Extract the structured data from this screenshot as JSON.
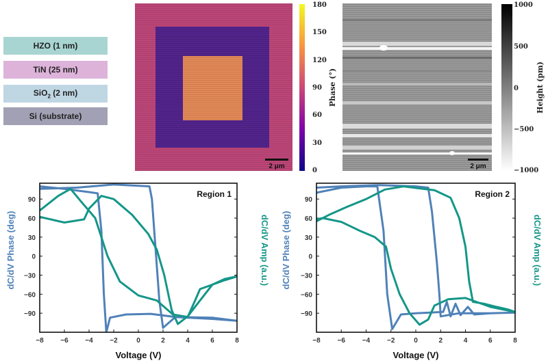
{
  "layer_stack": [
    {
      "label": "HZO (1 nm)",
      "color": "#a8d5d1"
    },
    {
      "label": "TiN (25 nm)",
      "color": "#ddb3da"
    },
    {
      "label": "SiO",
      "sub": "2",
      "suffix": " (2 nm)",
      "color": "#bfd6e3"
    },
    {
      "label": "Si (substrate)",
      "color": "#a2a0b4"
    }
  ],
  "phase_map": {
    "colorbar_label": "Phase (°)",
    "colorbar_ticks": [
      "180",
      "150",
      "120",
      "90",
      "60",
      "30",
      "0"
    ],
    "scale_bar": "2 μm",
    "colors": {
      "outer": "#c2487c",
      "ring": "#542590",
      "center": "#ea8d5a"
    }
  },
  "height_map": {
    "colorbar_label": "Height (pm)",
    "colorbar_ticks": [
      "1000",
      "500",
      "0",
      "−500",
      "−1000"
    ],
    "scale_bar": "2 μm"
  },
  "chart_data": [
    {
      "type": "line",
      "title": "Region 1",
      "xlabel": "Voltage (V)",
      "ylabel_left": "dC/dV Phase (deg)",
      "ylabel_right": "dC/dV Amp (a.u.)",
      "xlim": [
        -8,
        8
      ],
      "ylim": [
        -120,
        115
      ],
      "x_ticks": [
        "−8",
        "−6",
        "−4",
        "−2",
        "0",
        "2",
        "4",
        "6",
        "8"
      ],
      "y_ticks": [
        "90",
        "60",
        "30",
        "0",
        "−30",
        "−60",
        "−90"
      ],
      "colors": {
        "phase": "#4f81b8",
        "amp": "#149688"
      },
      "series": [
        {
          "id": "phase",
          "points": [
            [
              -8,
              110
            ],
            [
              -6,
              106
            ],
            [
              -4,
              101
            ],
            [
              -3.3,
              99
            ],
            [
              -3,
              40
            ],
            [
              -2.8,
              -60
            ],
            [
              -2.6,
              -120
            ],
            [
              -2.3,
              -97
            ],
            [
              -1,
              -92
            ],
            [
              1,
              -91
            ],
            [
              3,
              -96
            ],
            [
              6,
              -99
            ],
            [
              8,
              -102
            ],
            [
              6,
              -97
            ],
            [
              3,
              -96
            ],
            [
              2,
              -113
            ],
            [
              1.7,
              -70
            ],
            [
              1.4,
              10
            ],
            [
              1.1,
              90
            ],
            [
              0.9,
              110
            ],
            [
              -2,
              113
            ],
            [
              -5,
              108
            ],
            [
              -8,
              106
            ]
          ]
        },
        {
          "id": "amp",
          "points": [
            [
              -8,
              62
            ],
            [
              -6,
              53
            ],
            [
              -4.4,
              58
            ],
            [
              -4,
              75
            ],
            [
              -3,
              95
            ],
            [
              -2,
              90
            ],
            [
              -0.5,
              65
            ],
            [
              0.8,
              35
            ],
            [
              1.5,
              10
            ],
            [
              2.1,
              -30
            ],
            [
              2.7,
              -85
            ],
            [
              3.2,
              -107
            ],
            [
              4,
              -95
            ],
            [
              5,
              -70
            ],
            [
              6,
              -45
            ],
            [
              7,
              -38
            ],
            [
              8,
              -32
            ],
            [
              7,
              -36
            ],
            [
              6,
              -45
            ],
            [
              5,
              -52
            ],
            [
              4.6,
              -70
            ],
            [
              4,
              -96
            ],
            [
              2.8,
              -92
            ],
            [
              1.5,
              -70
            ],
            [
              0,
              -62
            ],
            [
              -1.5,
              -40
            ],
            [
              -2.5,
              0
            ],
            [
              -3.5,
              60
            ],
            [
              -4.6,
              85
            ],
            [
              -5.5,
              106
            ],
            [
              -6.5,
              95
            ],
            [
              -8,
              72
            ]
          ]
        }
      ]
    },
    {
      "type": "line",
      "title": "Region 2",
      "xlabel": "Voltage (V)",
      "ylabel_left": "dC/dV Phase (deg)",
      "ylabel_right": "dC/dV Amp (a.u.)",
      "xlim": [
        -8,
        8
      ],
      "ylim": [
        -120,
        115
      ],
      "x_ticks": [
        "−8",
        "−6",
        "−4",
        "−2",
        "0",
        "2",
        "4",
        "6",
        "8"
      ],
      "y_ticks": [
        "90",
        "60",
        "30",
        "0",
        "−30",
        "−60",
        "−90"
      ],
      "colors": {
        "phase": "#4f81b8",
        "amp": "#149688"
      },
      "series": [
        {
          "id": "phase",
          "points": [
            [
              -8,
              100
            ],
            [
              -6,
              108
            ],
            [
              -4,
              110
            ],
            [
              -3.1,
              110
            ],
            [
              -2.6,
              40
            ],
            [
              -2.3,
              -60
            ],
            [
              -1.9,
              -115
            ],
            [
              -1.2,
              -92
            ],
            [
              0,
              -90
            ],
            [
              2.2,
              -88
            ],
            [
              2.5,
              -72
            ],
            [
              2.8,
              -95
            ],
            [
              3.2,
              -75
            ],
            [
              3.6,
              -93
            ],
            [
              4.2,
              -80
            ],
            [
              4.7,
              -92
            ],
            [
              6,
              -90
            ],
            [
              8,
              -89
            ],
            [
              6,
              -90
            ],
            [
              3.5,
              -90
            ],
            [
              2,
              -95
            ],
            [
              1.9,
              -60
            ],
            [
              1.7,
              -10
            ],
            [
              1.3,
              70
            ],
            [
              1,
              108
            ],
            [
              0,
              110
            ],
            [
              -3,
              112
            ],
            [
              -6,
              110
            ],
            [
              -8,
              108
            ]
          ]
        },
        {
          "id": "amp",
          "points": [
            [
              -8,
              55
            ],
            [
              -7,
              65
            ],
            [
              -5.5,
              78
            ],
            [
              -4,
              90
            ],
            [
              -2.5,
              105
            ],
            [
              -1,
              110
            ],
            [
              1.5,
              104
            ],
            [
              2.8,
              92
            ],
            [
              3.5,
              60
            ],
            [
              4,
              15
            ],
            [
              4.3,
              -40
            ],
            [
              4.6,
              -72
            ],
            [
              5.5,
              -75
            ],
            [
              6.5,
              -80
            ],
            [
              7.4,
              -84
            ],
            [
              8,
              -88
            ],
            [
              7,
              -84
            ],
            [
              6,
              -80
            ],
            [
              4,
              -66
            ],
            [
              2.6,
              -68
            ],
            [
              1.5,
              -78
            ],
            [
              1,
              -100
            ],
            [
              0.3,
              -108
            ],
            [
              -0.5,
              -90
            ],
            [
              -1.3,
              -60
            ],
            [
              -2,
              -20
            ],
            [
              -2.4,
              15
            ],
            [
              -3.3,
              30
            ],
            [
              -4.5,
              40
            ],
            [
              -6,
              54
            ],
            [
              -7.5,
              60
            ],
            [
              -8,
              58
            ]
          ]
        }
      ]
    }
  ]
}
